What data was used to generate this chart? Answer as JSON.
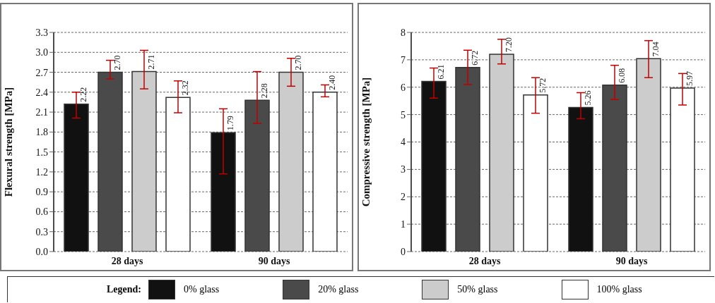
{
  "chart_data": [
    {
      "type": "bar",
      "ylabel": "Flexural strength [MPa]",
      "categories": [
        "28 days",
        "90 days"
      ],
      "ylim": [
        0,
        3.3
      ],
      "yticks": [
        {
          "value": 0,
          "label": "0.0"
        },
        0.3,
        0.6,
        0.9,
        1.2,
        1.5,
        1.8,
        2.1,
        2.4,
        2.7,
        {
          "value": 3,
          "label": "3.0"
        },
        3.3
      ],
      "grid": "y",
      "legend": "bottom",
      "legend_title": "Legend:",
      "series": [
        {
          "name": "0% glass",
          "color": "#111111",
          "values": [
            2.22,
            1.79
          ],
          "value_labels": [
            "2.22",
            "1.79"
          ],
          "errors": [
            [
              2.01,
              2.4
            ],
            [
              1.17,
              2.15
            ]
          ]
        },
        {
          "name": "20% glass",
          "color": "#4a4a4a",
          "values": [
            2.7,
            2.28
          ],
          "value_labels": [
            "2.70",
            "2.28"
          ],
          "errors": [
            [
              2.6,
              2.88
            ],
            [
              1.93,
              2.71
            ]
          ]
        },
        {
          "name": "50% glass",
          "color": "#cccccc",
          "values": [
            2.71,
            2.7
          ],
          "value_labels": [
            "2.71",
            "2.70"
          ],
          "errors": [
            [
              2.45,
              3.03
            ],
            [
              2.49,
              2.91
            ]
          ]
        },
        {
          "name": "100% glass",
          "color": "#ffffff",
          "values": [
            2.32,
            2.4
          ],
          "value_labels": [
            "2.32",
            "2.40"
          ],
          "errors": [
            [
              2.09,
              2.57
            ],
            [
              2.33,
              2.51
            ]
          ]
        }
      ]
    },
    {
      "type": "bar",
      "ylabel": "Compressive strength [MPa]",
      "categories": [
        "28 days",
        "90 days"
      ],
      "ylim": [
        0,
        8
      ],
      "yticks": [
        0,
        1,
        2,
        3,
        4,
        5,
        6,
        7,
        8
      ],
      "grid": "y",
      "series": [
        {
          "color": "#111111",
          "values": [
            6.21,
            5.26
          ],
          "value_labels": [
            "6.21",
            "5.26"
          ],
          "errors": [
            [
              5.6,
              6.7
            ],
            [
              4.85,
              5.8
            ]
          ]
        },
        {
          "color": "#4a4a4a",
          "values": [
            6.72,
            6.08
          ],
          "value_labels": [
            "6.72",
            "6.08"
          ],
          "errors": [
            [
              6.1,
              7.35
            ],
            [
              5.55,
              6.8
            ]
          ]
        },
        {
          "color": "#cccccc",
          "values": [
            7.2,
            7.04
          ],
          "value_labels": [
            "7.20",
            "7.04"
          ],
          "errors": [
            [
              6.85,
              7.75
            ],
            [
              6.35,
              7.7
            ]
          ]
        },
        {
          "color": "#ffffff",
          "values": [
            5.72,
            5.97
          ],
          "value_labels": [
            "5.72",
            "5.97"
          ],
          "errors": [
            [
              5.05,
              6.35
            ],
            [
              5.35,
              6.5
            ]
          ]
        }
      ]
    }
  ]
}
